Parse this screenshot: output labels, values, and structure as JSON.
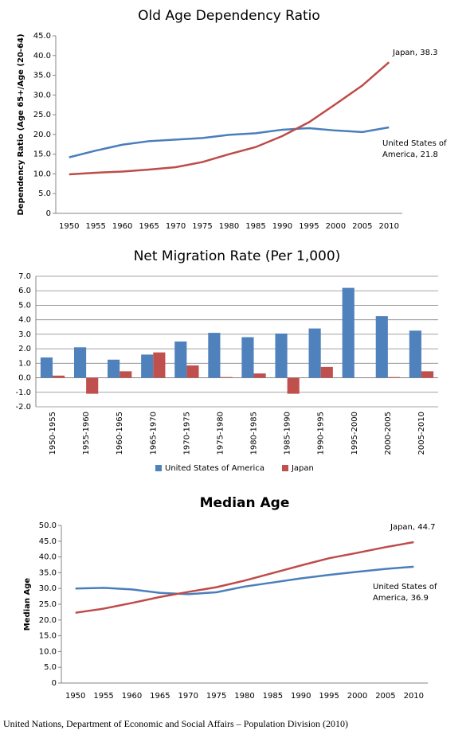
{
  "chart_data": [
    {
      "type": "line",
      "title": "Old Age Dependency Ratio",
      "y_label": "Dependency Ratio (Age 65+/Age (20-64)",
      "categories": [
        "1950",
        "1955",
        "1960",
        "1965",
        "1970",
        "1975",
        "1980",
        "1985",
        "1990",
        "1995",
        "2000",
        "2005",
        "2010"
      ],
      "series": [
        {
          "name": "United States of America",
          "color": "#4a7ebb",
          "values": [
            14.2,
            15.9,
            17.4,
            18.3,
            18.7,
            19.1,
            19.9,
            20.3,
            21.2,
            21.6,
            21.0,
            20.6,
            21.8
          ]
        },
        {
          "name": "Japan",
          "color": "#be4b48",
          "values": [
            9.9,
            10.3,
            10.6,
            11.1,
            11.7,
            13.0,
            15.0,
            16.8,
            19.6,
            23.1,
            27.7,
            32.4,
            38.3
          ]
        }
      ],
      "ylim": [
        0,
        45
      ],
      "yticks": [
        0,
        {
          "value": 5,
          "label": "5.0"
        },
        {
          "value": 10,
          "label": "10.0"
        },
        {
          "value": 15,
          "label": "15.0"
        },
        {
          "value": 20,
          "label": "20.0"
        },
        {
          "value": 25,
          "label": "25.0"
        },
        {
          "value": 30,
          "label": "30.0"
        },
        {
          "value": 35,
          "label": "35.0"
        },
        {
          "value": 40,
          "label": "40.0"
        },
        {
          "value": 45,
          "label": "45.0"
        }
      ],
      "grid": false,
      "annotations": [
        {
          "lines": [
            "Japan, 38.3"
          ]
        },
        {
          "lines": [
            "United States of",
            "America, 21.8"
          ]
        }
      ]
    },
    {
      "type": "bar",
      "title": "Net Migration Rate (Per 1,000)",
      "categories": [
        "1950-1955",
        "1955-1960",
        "1960-1965",
        "1965-1970",
        "1970-1975",
        "1975-1980",
        "1980-1985",
        "1985-1990",
        "1990-1995",
        "1995-2000",
        "2000-2005",
        "2005-2010"
      ],
      "series": [
        {
          "name": "United States of America",
          "color": "#4f81bd",
          "values": [
            1.4,
            2.1,
            1.25,
            1.6,
            2.5,
            3.1,
            2.8,
            3.05,
            3.4,
            6.2,
            4.25,
            3.25
          ]
        },
        {
          "name": "Japan",
          "color": "#c0504d",
          "values": [
            0.15,
            -1.1,
            0.45,
            1.75,
            0.85,
            0.05,
            0.3,
            -1.1,
            0.75,
            0,
            0.05,
            0.45
          ]
        }
      ],
      "ylim": [
        -2,
        7
      ],
      "yticks": [
        {
          "value": -2,
          "label": "-2.0"
        },
        {
          "value": -1,
          "label": "-1.0"
        },
        {
          "value": 0,
          "label": "0.0"
        },
        {
          "value": 1,
          "label": "1.0"
        },
        {
          "value": 2,
          "label": "2.0"
        },
        {
          "value": 3,
          "label": "3.0"
        },
        {
          "value": 4,
          "label": "4.0"
        },
        {
          "value": 5,
          "label": "5.0"
        },
        {
          "value": 6,
          "label": "6.0"
        },
        {
          "value": 7,
          "label": "7.0"
        }
      ],
      "grid": true,
      "legend": "bottom"
    },
    {
      "type": "line",
      "title": "Median Age",
      "y_label": "Median Age",
      "categories": [
        "1950",
        "1955",
        "1960",
        "1965",
        "1970",
        "1975",
        "1980",
        "1985",
        "1990",
        "1995",
        "2000",
        "2005",
        "2010"
      ],
      "series": [
        {
          "name": "United States of America",
          "color": "#4a7ebb",
          "values": [
            30.0,
            30.2,
            29.7,
            28.6,
            28.2,
            28.8,
            30.6,
            31.9,
            33.2,
            34.3,
            35.3,
            36.2,
            36.9
          ]
        },
        {
          "name": "Japan",
          "color": "#be4b48",
          "values": [
            22.3,
            23.6,
            25.4,
            27.3,
            28.9,
            30.4,
            32.5,
            34.9,
            37.3,
            39.6,
            41.3,
            43.1,
            44.7
          ]
        }
      ],
      "ylim": [
        0,
        50
      ],
      "yticks": [
        0,
        {
          "value": 5,
          "label": "5.0"
        },
        {
          "value": 10,
          "label": "10.0"
        },
        {
          "value": 15,
          "label": "15.0"
        },
        {
          "value": 20,
          "label": "20.0"
        },
        {
          "value": 25,
          "label": "25.0"
        },
        {
          "value": 30,
          "label": "30.0"
        },
        {
          "value": 35,
          "label": "35.0"
        },
        {
          "value": 40,
          "label": "40.0"
        },
        {
          "value": 45,
          "label": "45.0"
        },
        {
          "value": 50,
          "label": "50.0"
        }
      ],
      "grid": false,
      "annotations": [
        {
          "lines": [
            "Japan, 44.7"
          ]
        },
        {
          "lines": [
            "United States of",
            "America, 36.9"
          ]
        }
      ]
    }
  ],
  "source": "United Nations, Department of Economic and Social Affairs – Population Division (2010)"
}
